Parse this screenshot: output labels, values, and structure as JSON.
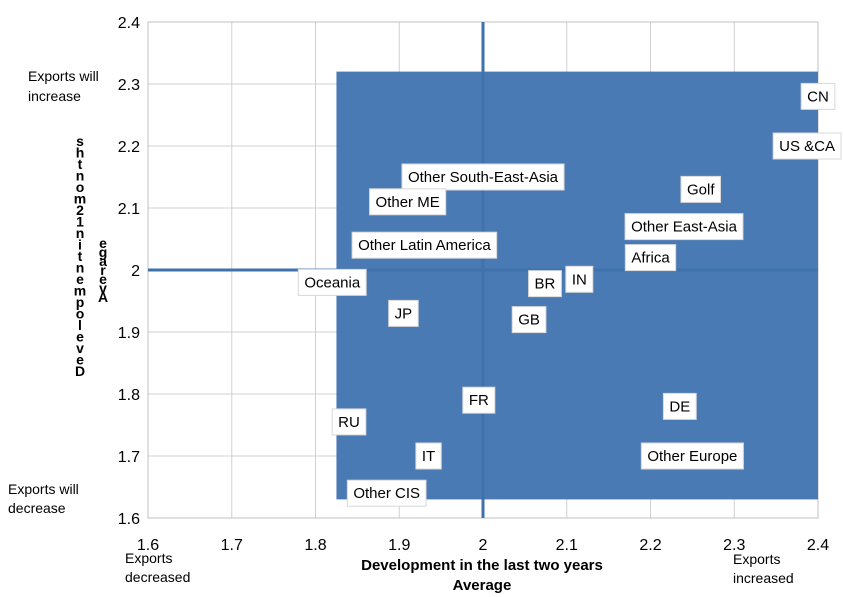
{
  "chart_data": {
    "type": "scatter",
    "xlabel": "Development in the last two years",
    "xlabel2": "Average",
    "xlim": [
      1.6,
      2.4
    ],
    "ylim": [
      1.6,
      2.4
    ],
    "x_ticks": [
      "1.6",
      "1.7",
      "1.8",
      "1.9",
      "2",
      "2.1",
      "2.2",
      "2.3",
      "2.4"
    ],
    "y_ticks": [
      "1.6",
      "1.7",
      "1.8",
      "1.9",
      "2",
      "2.1",
      "2.2",
      "2.3",
      "2.4"
    ],
    "grid": true,
    "reference_lines": {
      "x": 2.0,
      "y": 2.0
    },
    "highlight_region": {
      "x": [
        1.825,
        2.4
      ],
      "y": [
        1.63,
        2.32
      ],
      "color": "#4a7ab4"
    },
    "points": [
      {
        "label": "CN",
        "x": 2.4,
        "y": 2.28
      },
      {
        "label": "US &CA",
        "x": 2.4,
        "y": 2.2
      },
      {
        "label": "Golf",
        "x": 2.26,
        "y": 2.13
      },
      {
        "label": "Other East-Asia",
        "x": 2.24,
        "y": 2.07
      },
      {
        "label": "Africa",
        "x": 2.2,
        "y": 2.02
      },
      {
        "label": "Other South-East-Asia",
        "x": 2.0,
        "y": 2.15
      },
      {
        "label": "Other ME",
        "x": 1.91,
        "y": 2.11
      },
      {
        "label": "Other Latin America",
        "x": 1.93,
        "y": 2.04
      },
      {
        "label": "Oceania",
        "x": 1.82,
        "y": 1.98
      },
      {
        "label": "BR",
        "x": 2.074,
        "y": 1.978
      },
      {
        "label": "IN",
        "x": 2.115,
        "y": 1.985
      },
      {
        "label": "JP",
        "x": 1.905,
        "y": 1.93
      },
      {
        "label": "GB",
        "x": 2.055,
        "y": 1.92
      },
      {
        "label": "FR",
        "x": 1.995,
        "y": 1.79
      },
      {
        "label": "DE",
        "x": 2.235,
        "y": 1.78
      },
      {
        "label": "RU",
        "x": 1.84,
        "y": 1.755
      },
      {
        "label": "IT",
        "x": 1.935,
        "y": 1.7
      },
      {
        "label": "Other Europe",
        "x": 2.25,
        "y": 1.7
      },
      {
        "label": "Other CIS",
        "x": 1.885,
        "y": 1.64
      }
    ]
  },
  "corners": {
    "top_left": [
      "Exports will",
      "increase"
    ],
    "bottom_left": [
      "Exports will",
      "decrease"
    ],
    "x_left": [
      "Exports",
      "decreased"
    ],
    "x_right": [
      "Exports",
      "increased"
    ]
  },
  "ylabel_left_glyphs": "Development in 12 months",
  "ylabel_right_glyphs": "Average"
}
